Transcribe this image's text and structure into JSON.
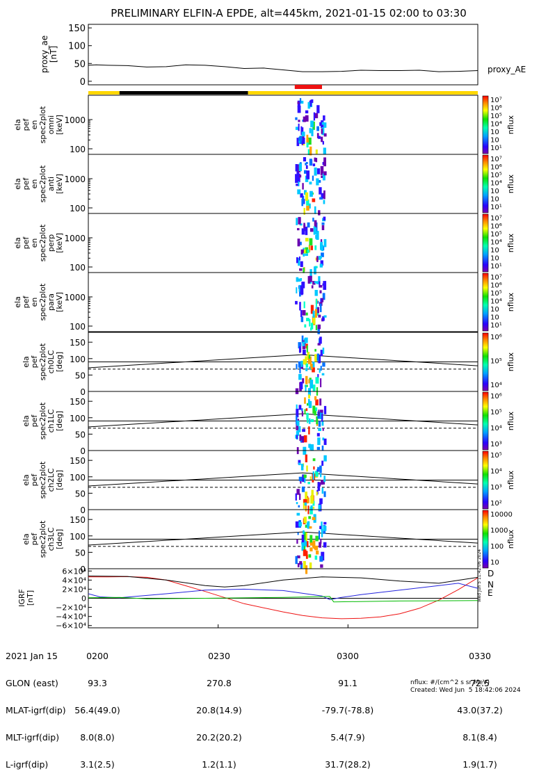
{
  "title": "PRELIMINARY ELFIN-A EPDE, alt=445km, 2021-01-15 02:00 to 03:30",
  "colors": {
    "red": "#ee1111",
    "green": "#00bb00",
    "blue": "#2222dd",
    "yellow": "#ffd700"
  },
  "chart_data": [
    {
      "type": "line",
      "panel": "proxy_ae",
      "ylabel": [
        "proxy_ae",
        "[nT]"
      ],
      "ylim": [
        -10,
        160
      ],
      "yticks": [
        "150",
        "100",
        "50",
        "0"
      ],
      "series": [
        {
          "name": "proxy_AE",
          "x": [
            0,
            0.02,
            0.05,
            0.1,
            0.15,
            0.2,
            0.25,
            0.3,
            0.35,
            0.4,
            0.45,
            0.5,
            0.55,
            0.6,
            0.65,
            0.7,
            0.75,
            0.8,
            0.85,
            0.9,
            0.95,
            1
          ],
          "values": [
            45,
            46,
            45,
            44,
            40,
            41,
            46,
            45,
            41,
            36,
            37,
            32,
            27,
            27,
            28,
            31,
            30,
            30,
            31,
            27,
            28,
            30
          ]
        }
      ]
    },
    {
      "type": "bar",
      "panel": "state_bar",
      "segments": [
        {
          "from": 0,
          "to": 0.08,
          "color": "yellow"
        },
        {
          "from": 0.08,
          "to": 0.41,
          "color": "black"
        },
        {
          "from": 0.41,
          "to": 1,
          "color": "yellow"
        }
      ],
      "highlight": {
        "from": 0.53,
        "to": 0.6,
        "color": "red"
      }
    },
    {
      "type": "heatmap",
      "panel": "omni",
      "ylabel": [
        "ela",
        "pef",
        "en",
        "spec2plot",
        "omni",
        "[keV]"
      ],
      "scale": "log",
      "yticks": [
        "1000",
        "100"
      ],
      "cbar": [
        "10⁷",
        "10⁶",
        "10⁵",
        "10⁴",
        "10⁳",
        "10⁲",
        "10¹"
      ],
      "cbar_label": "nflux"
    },
    {
      "type": "heatmap",
      "panel": "anti",
      "ylabel": [
        "ela",
        "pef",
        "en",
        "spec2plot",
        "anti",
        "[keV]"
      ],
      "scale": "log",
      "yticks": [
        "1000",
        "100"
      ],
      "cbar": [
        "10⁷",
        "10⁶",
        "10⁵",
        "10⁴",
        "10⁳",
        "10⁲",
        "10¹"
      ],
      "cbar_label": "nflux"
    },
    {
      "type": "heatmap",
      "panel": "perp",
      "ylabel": [
        "ela",
        "pef",
        "en",
        "spec2plot",
        "perp",
        "[keV]"
      ],
      "scale": "log",
      "yticks": [
        "1000",
        "100"
      ],
      "cbar": [
        "10⁷",
        "10⁶",
        "10⁵",
        "10⁴",
        "10⁳",
        "10⁲",
        "10¹"
      ],
      "cbar_label": "nflux"
    },
    {
      "type": "heatmap",
      "panel": "para",
      "ylabel": [
        "ela",
        "pef",
        "en",
        "spec2plot",
        "para",
        "[keV]"
      ],
      "scale": "log",
      "yticks": [
        "1000",
        "100"
      ],
      "cbar": [
        "10⁷",
        "10⁶",
        "10⁵",
        "10⁴",
        "10⁳",
        "10⁲",
        "10¹"
      ],
      "cbar_label": "nflux"
    },
    {
      "type": "heatmap",
      "panel": "ch0LC",
      "ylabel": [
        "ela",
        "pef",
        "spec2plot",
        "ch0LC",
        "[deg]"
      ],
      "ylim": [
        0,
        180
      ],
      "yticks": [
        "150",
        "100",
        "50",
        "0"
      ],
      "cbar": [
        "10⁶",
        "10⁵",
        "10⁴"
      ],
      "cbar_label": "nflux"
    },
    {
      "type": "heatmap",
      "panel": "ch1LC",
      "ylabel": [
        "ela",
        "pef",
        "spec2plot",
        "ch1LC",
        "[deg]"
      ],
      "ylim": [
        0,
        180
      ],
      "yticks": [
        "150",
        "100",
        "50",
        "0"
      ],
      "cbar": [
        "10⁶",
        "10⁵",
        "10⁴",
        "10³"
      ],
      "cbar_label": "nflux"
    },
    {
      "type": "heatmap",
      "panel": "ch2LC",
      "ylabel": [
        "ela",
        "pef",
        "spec2plot",
        "ch2LC",
        "[deg]"
      ],
      "ylim": [
        0,
        180
      ],
      "yticks": [
        "150",
        "100",
        "50",
        "0"
      ],
      "cbar": [
        "10⁵",
        "10⁴",
        "10³",
        "10²"
      ],
      "cbar_label": "nflux"
    },
    {
      "type": "heatmap",
      "panel": "ch3LC",
      "ylabel": [
        "ela",
        "pef",
        "spec2plot",
        "ch3LC",
        "[deg]"
      ],
      "ylim": [
        0,
        180
      ],
      "yticks": [
        "150",
        "100",
        "50",
        "0"
      ],
      "cbar": [
        "10000",
        "1000",
        "100",
        "10"
      ],
      "cbar_label": "nflux"
    },
    {
      "type": "line",
      "panel": "igrf",
      "ylabel": [
        "IGRF",
        "[nT]"
      ],
      "ylim": [
        -65000,
        65000
      ],
      "yticks": [
        "6×10⁴",
        "4×10⁴",
        "2×10⁴",
        "0",
        "−2×10⁴",
        "−4×10⁴",
        "−6×10⁴"
      ],
      "series": [
        {
          "name": "D",
          "color": "red",
          "x": [
            0,
            0.05,
            0.1,
            0.15,
            0.2,
            0.3,
            0.4,
            0.5,
            0.55,
            0.6,
            0.65,
            0.7,
            0.75,
            0.8,
            0.85,
            0.9,
            0.95,
            1
          ],
          "values": [
            47000,
            47000,
            47500,
            46000,
            40000,
            15000,
            -12000,
            -30000,
            -38000,
            -43000,
            -45000,
            -44000,
            -41000,
            -34000,
            -22000,
            -4000,
            19000,
            45000
          ]
        },
        {
          "name": "N",
          "color": "blue",
          "x": [
            0,
            0.03,
            0.08,
            0.2,
            0.3,
            0.4,
            0.5,
            0.6,
            0.62,
            0.65,
            0.7,
            0.8,
            0.9,
            0.95,
            1
          ],
          "values": [
            10000,
            3000,
            1000,
            10000,
            18000,
            20000,
            17000,
            5000,
            -3000,
            2000,
            8000,
            18000,
            28000,
            33000,
            22000
          ]
        },
        {
          "name": "E",
          "color": "green",
          "x": [
            0,
            0.08,
            0.15,
            0.3,
            0.5,
            0.62,
            0.63,
            0.8,
            1
          ],
          "values": [
            1000,
            2000,
            -1000,
            0,
            2000,
            4000,
            -8000,
            -6000,
            -5000
          ]
        },
        {
          "name": "",
          "color": "black",
          "x": [
            0,
            0.1,
            0.2,
            0.3,
            0.35,
            0.4,
            0.5,
            0.6,
            0.7,
            0.8,
            0.9,
            1
          ],
          "values": [
            49000,
            48000,
            40000,
            28000,
            25000,
            28000,
            40000,
            47000,
            45000,
            38000,
            33000,
            46000
          ]
        }
      ]
    }
  ],
  "footer": {
    "rows": [
      [
        "2021 Jan 15",
        "0200",
        "0230",
        "0300",
        "0330"
      ],
      [
        "GLON (east)",
        "93.3",
        "270.8",
        "91.1",
        "72.5"
      ],
      [
        "MLAT-igrf(dip)",
        "56.4(49.0)",
        "20.8(14.9)",
        "-79.7(-78.8)",
        "43.0(37.2)"
      ],
      [
        "MLT-igrf(dip)",
        "8.0(8.0)",
        "20.2(20.2)",
        "5.4(7.9)",
        "8.1(8.4)"
      ],
      [
        "L-igrf(dip)",
        "3.1(2.5)",
        "1.2(1.1)",
        "31.7(28.2)",
        "1.9(1.7)"
      ]
    ],
    "units": "nflux: #/(cm^2 s sr MeV)",
    "created": "Created: Wed Jun  5 18:42:06 2024",
    "side_stamp": "Wed Jun  5 11:42:06 2024"
  }
}
